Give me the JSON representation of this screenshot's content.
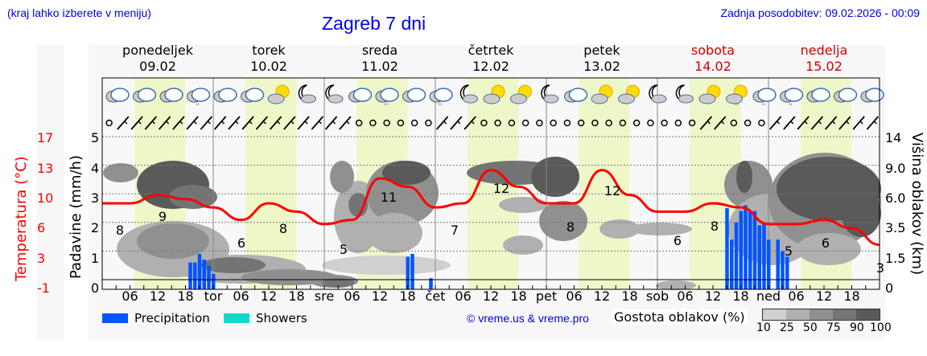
{
  "header": {
    "location_hint": "(kraj lahko izberete v meniju)",
    "title": "Zagreb 7 dni",
    "last_update": "Zadnja posodobitev: 09.02.2026 - 00:09"
  },
  "days": [
    {
      "name": "ponedeljek",
      "date": "09.02",
      "weekend": false
    },
    {
      "name": "torek",
      "date": "10.02",
      "weekend": false
    },
    {
      "name": "sreda",
      "date": "11.02",
      "weekend": false
    },
    {
      "name": "četrtek",
      "date": "12.02",
      "weekend": false
    },
    {
      "name": "petek",
      "date": "13.02",
      "weekend": false
    },
    {
      "name": "sobota",
      "date": "14.02",
      "weekend": true
    },
    {
      "name": "nedelja",
      "date": "15.02",
      "weekend": true
    }
  ],
  "axes": {
    "left_temp_title": "Temperatura (°C)",
    "left_temp_ticks": [
      "17",
      "13",
      "10",
      "6",
      "3",
      "-1"
    ],
    "left_precip_title": "Padavine (mm/h)",
    "left_precip_ticks": [
      "5",
      "4",
      "3",
      "2",
      "1",
      "0"
    ],
    "right_title": "Višina oblakov (km)",
    "right_ticks": [
      "14",
      "9.0",
      "6.0",
      "3.5",
      "1.5",
      "0"
    ],
    "x_labels": [
      "06",
      "12",
      "18",
      "tor",
      "06",
      "12",
      "18",
      "sre",
      "06",
      "12",
      "18",
      "čet",
      "06",
      "12",
      "18",
      "pet",
      "06",
      "12",
      "18",
      "sob",
      "06",
      "12",
      "18",
      "ned",
      "06",
      "12",
      "18"
    ]
  },
  "legend": {
    "precipitation": "Precipitation",
    "showers": "Showers",
    "precipitation_color": "#0055ff",
    "showers_color": "#11d9c9",
    "copyright": "© vreme.us & vreme.pro",
    "cloud_density_title": "Gostota oblakov (%)",
    "cloud_density_levels": [
      "10",
      "25",
      "50",
      "75",
      "90",
      "100"
    ],
    "cloud_density_colors": [
      "#d0d0d0",
      "#b0b0b0",
      "#909090",
      "#747474",
      "#5a5a5a"
    ]
  },
  "chart_data": {
    "type": "line",
    "title": "Zagreb 7 dni",
    "xlabel": "",
    "ylabel": "Temperatura (°C)",
    "ylim": [
      -1,
      17
    ],
    "x": [
      "Mon 00",
      "Mon 06",
      "Mon 12",
      "Mon 18",
      "Tue 00",
      "Tue 06",
      "Tue 12",
      "Tue 18",
      "Wed 00",
      "Wed 06",
      "Wed 12",
      "Wed 18",
      "Thu 00",
      "Thu 06",
      "Thu 12",
      "Thu 18",
      "Fri 00",
      "Fri 06",
      "Fri 12",
      "Fri 18",
      "Sat 00",
      "Sat 06",
      "Sat 12",
      "Sat 18",
      "Sun 00",
      "Sun 06",
      "Sun 12",
      "Sun 18",
      "Sun 24"
    ],
    "series": [
      {
        "name": "Temperatura",
        "color": "#ff0000",
        "values": [
          8,
          8,
          9,
          8.5,
          7.5,
          6,
          8,
          7,
          5.5,
          6,
          11,
          10,
          7.5,
          8,
          12,
          10,
          8,
          8,
          12,
          9,
          7,
          7,
          8,
          7.5,
          5.5,
          5.5,
          6,
          5,
          3
        ]
      },
      {
        "name": "Precipitation (mm/h)",
        "color": "#0055ff",
        "hourly_bars": [
          {
            "t": "Mon 19",
            "v": 0.6
          },
          {
            "t": "Mon 20",
            "v": 0.6
          },
          {
            "t": "Mon 21",
            "v": 0.9
          },
          {
            "t": "Mon 22",
            "v": 0.7
          },
          {
            "t": "Mon 23",
            "v": 0.5
          },
          {
            "t": "Tue 00",
            "v": 0.2
          },
          {
            "t": "Wed 18",
            "v": 0.8
          },
          {
            "t": "Wed 19",
            "v": 0.9
          },
          {
            "t": "Wed 23",
            "v": 0.05
          },
          {
            "t": "Sat 15",
            "v": 2.5
          },
          {
            "t": "Sat 16",
            "v": 1.4
          },
          {
            "t": "Sat 17",
            "v": 2.0
          },
          {
            "t": "Sat 18",
            "v": 2.4
          },
          {
            "t": "Sat 19",
            "v": 2.6
          },
          {
            "t": "Sat 20",
            "v": 2.4
          },
          {
            "t": "Sat 21",
            "v": 2.4
          },
          {
            "t": "Sat 22",
            "v": 1.9
          },
          {
            "t": "Sat 23",
            "v": 2.0
          },
          {
            "t": "Sun 00",
            "v": 1.4
          },
          {
            "t": "Sun 02",
            "v": 1.4
          },
          {
            "t": "Sun 03",
            "v": 1.0
          },
          {
            "t": "Sun 04",
            "v": 0.8
          }
        ]
      }
    ],
    "temp_annotations": [
      {
        "label": "8",
        "pos": "Mon 02"
      },
      {
        "label": "9",
        "pos": "Mon 08"
      },
      {
        "label": "6",
        "pos": "Tue 04"
      },
      {
        "label": "8",
        "pos": "Tue 12"
      },
      {
        "label": "5",
        "pos": "Wed 00"
      },
      {
        "label": "11",
        "pos": "Wed 14"
      },
      {
        "label": "7",
        "pos": "Thu 02"
      },
      {
        "label": "12",
        "pos": "Thu 12"
      },
      {
        "label": "8",
        "pos": "Fri 04"
      },
      {
        "label": "12",
        "pos": "Fri 14"
      },
      {
        "label": "6",
        "pos": "Sat 04"
      },
      {
        "label": "8",
        "pos": "Sat 12"
      },
      {
        "label": "5",
        "pos": "Sun 02"
      },
      {
        "label": "6",
        "pos": "Sun 10"
      },
      {
        "label": "3",
        "pos": "Sun 24"
      }
    ],
    "precip_ylim": [
      0,
      5
    ],
    "cloud_height_ticks_km": [
      0,
      1.5,
      3.5,
      6.0,
      9.0,
      14
    ],
    "grid": true
  }
}
